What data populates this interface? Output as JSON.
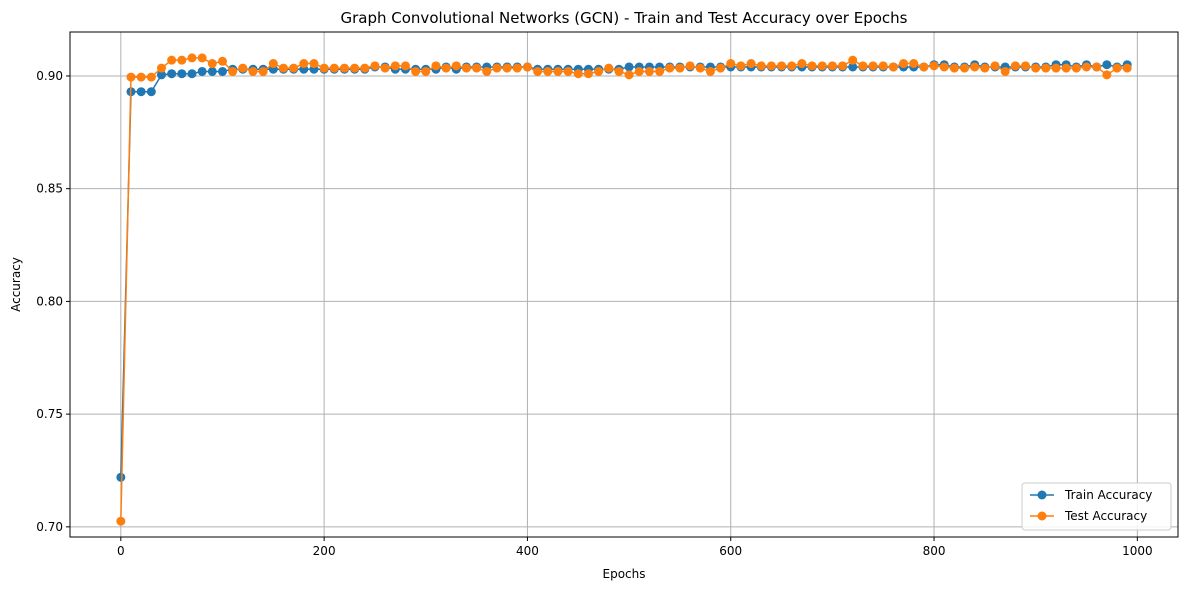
{
  "chart_data": {
    "type": "line",
    "title": "Graph Convolutional Networks (GCN) - Train and Test Accuracy over Epochs",
    "xlabel": "Epochs",
    "ylabel": "Accuracy",
    "xlim": [
      -50,
      1040
    ],
    "ylim": [
      0.6955,
      0.9195
    ],
    "xticks": [
      0,
      200,
      400,
      600,
      800,
      1000
    ],
    "yticks": [
      0.7,
      0.75,
      0.8,
      0.85,
      0.9
    ],
    "xtick_labels": [
      "0",
      "200",
      "400",
      "600",
      "800",
      "1000"
    ],
    "ytick_labels": [
      "0.70",
      "0.75",
      "0.80",
      "0.85",
      "0.90"
    ],
    "grid": true,
    "legend_position": "lower-right",
    "x": [
      0,
      10,
      20,
      30,
      40,
      50,
      60,
      70,
      80,
      90,
      100,
      110,
      120,
      130,
      140,
      150,
      160,
      170,
      180,
      190,
      200,
      210,
      220,
      230,
      240,
      250,
      260,
      270,
      280,
      290,
      300,
      310,
      320,
      330,
      340,
      350,
      360,
      370,
      380,
      390,
      400,
      410,
      420,
      430,
      440,
      450,
      460,
      470,
      480,
      490,
      500,
      510,
      520,
      530,
      540,
      550,
      560,
      570,
      580,
      590,
      600,
      610,
      620,
      630,
      640,
      650,
      660,
      670,
      680,
      690,
      700,
      710,
      720,
      730,
      740,
      750,
      760,
      770,
      780,
      790,
      800,
      810,
      820,
      830,
      840,
      850,
      860,
      870,
      880,
      890,
      900,
      910,
      920,
      930,
      940,
      950,
      960,
      970,
      980,
      990
    ],
    "series": [
      {
        "name": "Train Accuracy",
        "color": "#1f77b4",
        "values": [
          0.722,
          0.893,
          0.893,
          0.893,
          0.9005,
          0.901,
          0.901,
          0.901,
          0.902,
          0.902,
          0.902,
          0.903,
          0.903,
          0.903,
          0.903,
          0.903,
          0.903,
          0.903,
          0.903,
          0.903,
          0.903,
          0.903,
          0.903,
          0.903,
          0.903,
          0.904,
          0.904,
          0.903,
          0.903,
          0.903,
          0.903,
          0.903,
          0.904,
          0.903,
          0.904,
          0.904,
          0.904,
          0.904,
          0.904,
          0.904,
          0.904,
          0.903,
          0.903,
          0.903,
          0.903,
          0.903,
          0.903,
          0.903,
          0.903,
          0.903,
          0.904,
          0.904,
          0.904,
          0.904,
          0.904,
          0.904,
          0.904,
          0.904,
          0.904,
          0.904,
          0.904,
          0.904,
          0.904,
          0.904,
          0.904,
          0.904,
          0.904,
          0.904,
          0.904,
          0.904,
          0.904,
          0.904,
          0.904,
          0.904,
          0.904,
          0.904,
          0.904,
          0.904,
          0.904,
          0.904,
          0.905,
          0.905,
          0.904,
          0.904,
          0.905,
          0.904,
          0.904,
          0.904,
          0.904,
          0.904,
          0.904,
          0.904,
          0.905,
          0.905,
          0.904,
          0.905,
          0.904,
          0.905,
          0.904,
          0.905
        ]
      },
      {
        "name": "Test Accuracy",
        "color": "#ff7f0e",
        "values": [
          0.7025,
          0.8995,
          0.8995,
          0.8995,
          0.9035,
          0.907,
          0.907,
          0.908,
          0.908,
          0.9055,
          0.9065,
          0.902,
          0.9035,
          0.902,
          0.902,
          0.9055,
          0.9035,
          0.9035,
          0.9055,
          0.9055,
          0.9035,
          0.9035,
          0.9035,
          0.9035,
          0.9035,
          0.9045,
          0.9035,
          0.9045,
          0.9045,
          0.902,
          0.902,
          0.9045,
          0.9035,
          0.9045,
          0.9035,
          0.9035,
          0.902,
          0.9035,
          0.9035,
          0.9035,
          0.904,
          0.902,
          0.902,
          0.902,
          0.902,
          0.901,
          0.901,
          0.902,
          0.9035,
          0.902,
          0.9005,
          0.902,
          0.902,
          0.902,
          0.9035,
          0.9035,
          0.9045,
          0.9035,
          0.902,
          0.9035,
          0.9055,
          0.9045,
          0.9055,
          0.9045,
          0.9045,
          0.9045,
          0.9045,
          0.9055,
          0.9045,
          0.9045,
          0.9045,
          0.9045,
          0.907,
          0.9045,
          0.9045,
          0.9045,
          0.904,
          0.9055,
          0.9055,
          0.904,
          0.9045,
          0.904,
          0.9035,
          0.9035,
          0.904,
          0.9035,
          0.9045,
          0.902,
          0.9045,
          0.9045,
          0.9035,
          0.9035,
          0.9035,
          0.9035,
          0.9035,
          0.904,
          0.904,
          0.9005,
          0.9035,
          0.9035
        ]
      }
    ]
  }
}
